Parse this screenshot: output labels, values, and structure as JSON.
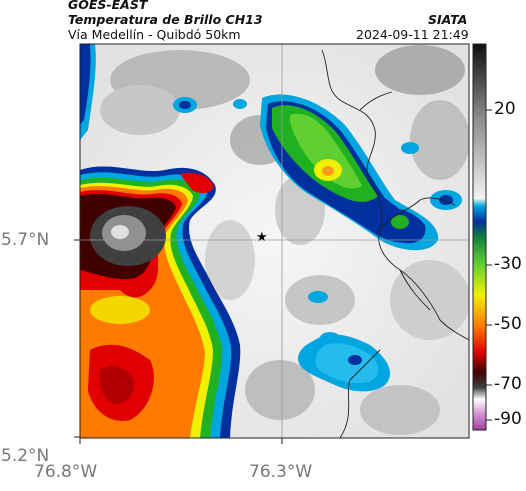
{
  "header": {
    "satellite": "GOES-EAST",
    "product": "Temperatura de Brillo CH13",
    "agency": "SIATA",
    "region": "Vía Medellín - Quibdó 50km",
    "timestamp": "2024-09-11 21:49"
  },
  "axes": {
    "lat_ticks": [
      "5.7°N",
      "5.2°N"
    ],
    "lon_ticks": [
      "76.8°W",
      "76.3°W"
    ]
  },
  "colorbar": {
    "ticks": [
      "20",
      "-30",
      "-50",
      "-70",
      "-90"
    ],
    "unit_range": [
      -95,
      35
    ],
    "colors": {
      "grey_dark": "#1a1a1a",
      "grey_light": "#f2f2f2",
      "cyan": "#00a6e0",
      "blue": "#0030a0",
      "green": "#20b020",
      "yellow": "#f0f000",
      "orange": "#ff7a00",
      "red": "#e00000",
      "dark_red": "#400000",
      "magenta": "#a040a0"
    }
  },
  "map": {
    "marker": "star",
    "marker_symbol": "★",
    "background": "#d8d8d8"
  }
}
